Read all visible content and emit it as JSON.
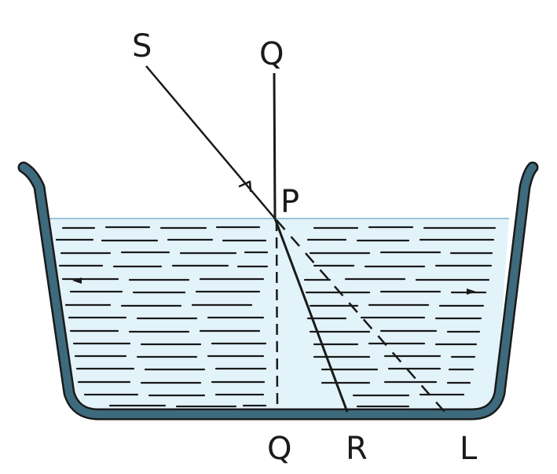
{
  "labels": {
    "source": "S",
    "normal_top": "Q",
    "incidence_point": "P",
    "normal_bottom": "Q",
    "refracted_end": "R",
    "unrefracted_end": "L"
  },
  "colors": {
    "water": "#e3f3fa",
    "water_surface": "#9ac6d6",
    "container": "#3d6b7d",
    "ink": "#1a1a1a"
  }
}
